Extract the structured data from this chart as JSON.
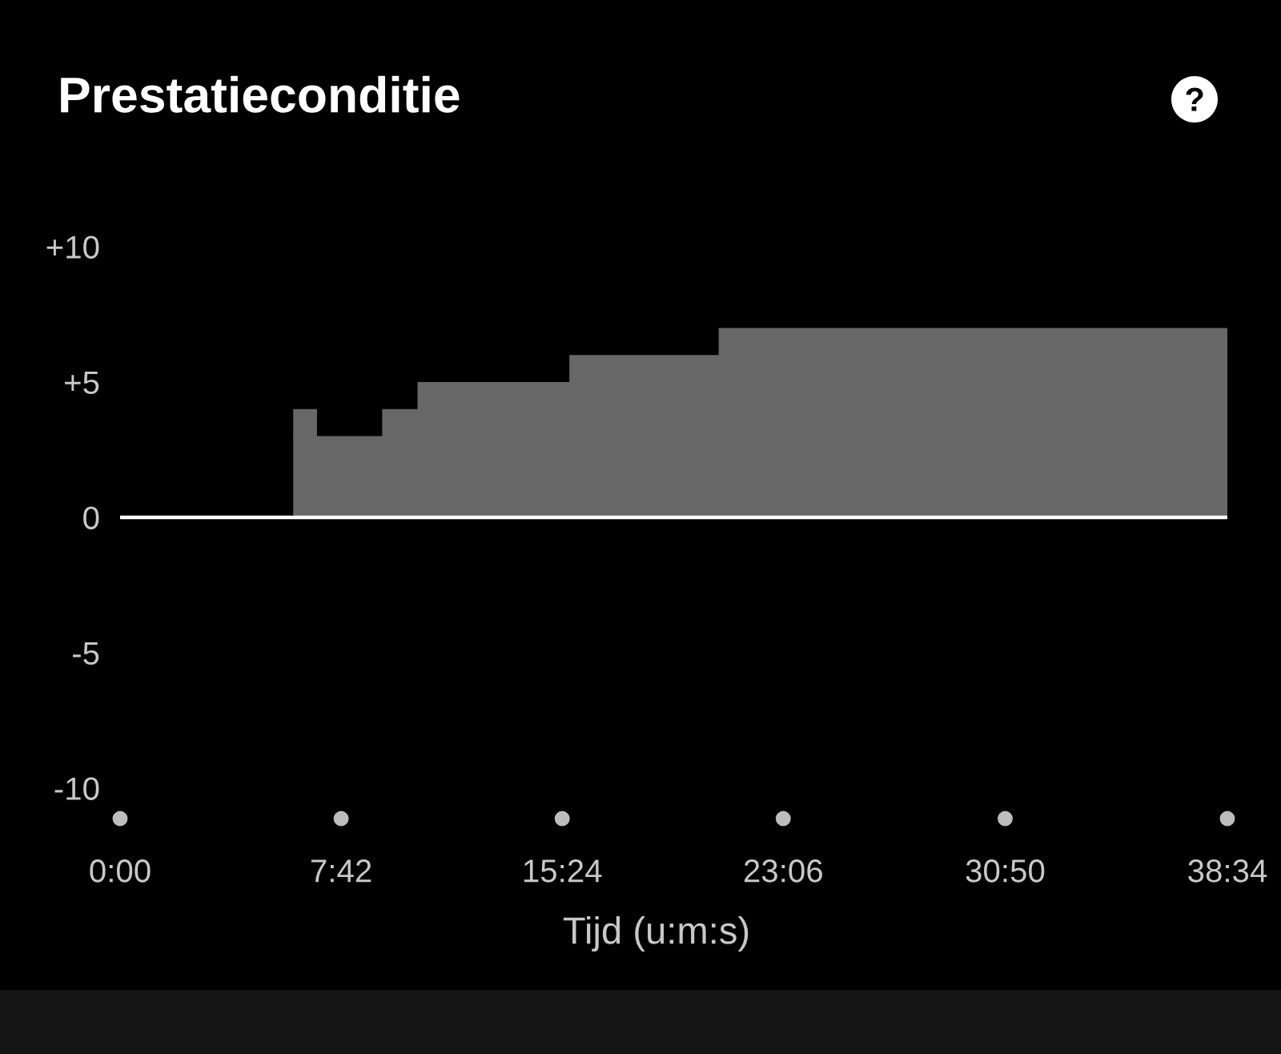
{
  "chart_data": {
    "type": "area",
    "title": "Prestatieconditie",
    "xlabel": "Tijd (u:m:s)",
    "series": [
      {
        "color": "#676767",
        "x": [
          6.03,
          6.86,
          6.86,
          9.13,
          9.13,
          10.36,
          10.36,
          15.65,
          15.65,
          20.85,
          20.85,
          38.57
        ],
        "values": [
          4,
          4,
          3,
          3,
          4,
          4,
          5,
          5,
          6,
          6,
          7,
          7
        ]
      }
    ],
    "xlim": [
      0,
      38.57
    ],
    "xticks": [
      {
        "value": 0,
        "label": "0:00"
      },
      {
        "value": 7.7,
        "label": "7:42"
      },
      {
        "value": 15.4,
        "label": "15:24"
      },
      {
        "value": 23.1,
        "label": "23:06"
      },
      {
        "value": 30.83,
        "label": "30:50"
      },
      {
        "value": 38.57,
        "label": "38:34"
      }
    ],
    "ylim": [
      -10,
      10
    ],
    "yticks": [
      {
        "value": 10,
        "label": "+10"
      },
      {
        "value": 5,
        "label": "+5"
      },
      0,
      -5,
      -10
    ],
    "ref_lines": [
      {
        "axis": "y",
        "value": 0,
        "color": "#ffffff"
      }
    ],
    "grid": false,
    "legend": false
  }
}
